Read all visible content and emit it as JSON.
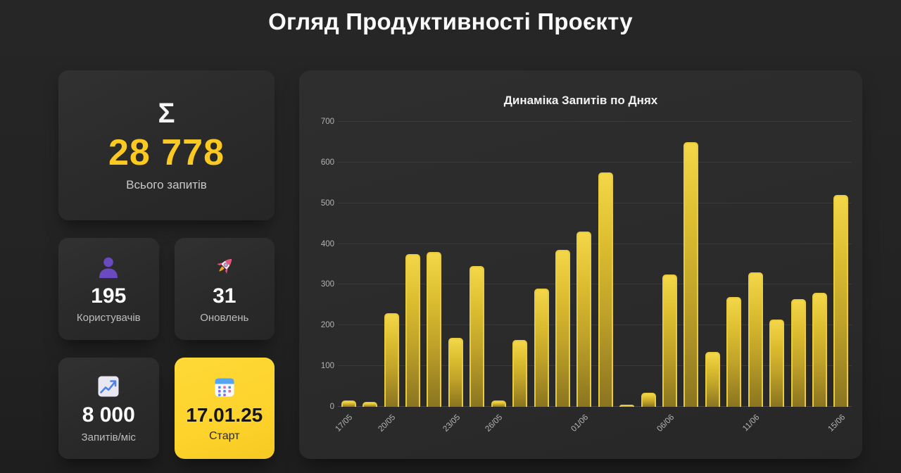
{
  "page": {
    "title": "Огляд Продуктивності Проєкту"
  },
  "stats": {
    "total": {
      "icon": "sigma-icon",
      "glyph": "Σ",
      "value": "28 778",
      "label": "Всього запитів"
    },
    "users": {
      "icon": "user-icon",
      "value": "195",
      "label": "Користувачів"
    },
    "updates": {
      "icon": "rocket-icon",
      "value": "31",
      "label": "Оновлень"
    },
    "rpm": {
      "icon": "chart-up-icon",
      "value": "8 000",
      "label": "Запитів/міс"
    },
    "start": {
      "icon": "calendar-icon",
      "value": "17.01.25",
      "label": "Старт"
    }
  },
  "chart_data": {
    "type": "bar",
    "title": "Динаміка Запитів по Днях",
    "xlabel": "",
    "ylabel": "",
    "ylim": [
      0,
      700
    ],
    "yticks": [
      0,
      100,
      200,
      300,
      400,
      500,
      600,
      700
    ],
    "grid": true,
    "legend": false,
    "x": [
      "17/05",
      "",
      "20/05",
      "",
      "",
      "23/05",
      "",
      "26/05",
      "",
      "",
      "",
      "01/06",
      "",
      "",
      "",
      "06/06",
      "",
      "",
      "",
      "11/06",
      "",
      "",
      "",
      "15/06"
    ],
    "values": [
      15,
      12,
      230,
      375,
      380,
      170,
      345,
      15,
      165,
      290,
      385,
      430,
      575,
      5,
      35,
      325,
      650,
      135,
      270,
      330,
      215,
      265,
      280,
      520
    ]
  },
  "colors": {
    "page_bg": "#232323",
    "panel_bg": "#2b2b2b",
    "accent_number_yellow": "#fbc91f",
    "card_yellow": "#fdd32c",
    "bar_fill_top": "#f3d748",
    "bar_fill_bottom": "#8a7420",
    "bar_border": "#e9cb3e",
    "gridline": "#3a3a3a",
    "axis_text": "#b3b3b3"
  }
}
